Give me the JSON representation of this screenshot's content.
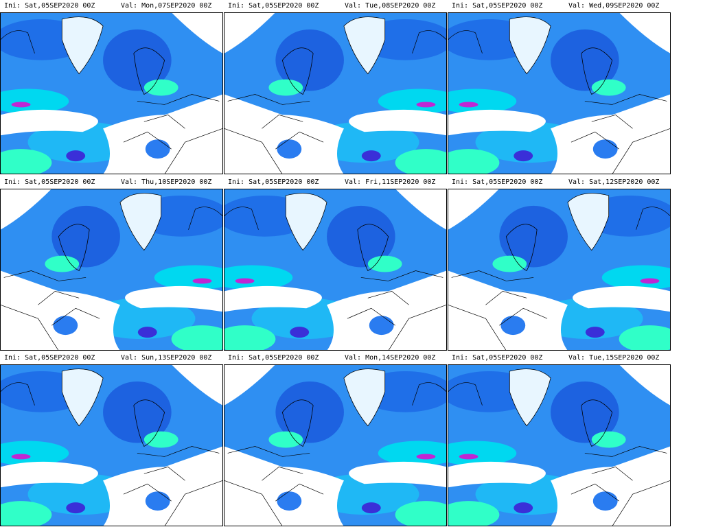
{
  "panels": [
    {
      "ini": "Ini: Sat,05SEP2020 00Z",
      "val": "Val: Mon,07SEP2020 00Z"
    },
    {
      "ini": "Ini: Sat,05SEP2020 00Z",
      "val": "Val: Tue,08SEP2020 00Z"
    },
    {
      "ini": "Ini: Sat,05SEP2020 00Z",
      "val": "Val: Wed,09SEP2020 00Z"
    },
    {
      "ini": "Ini: Sat,05SEP2020 00Z",
      "val": "Val: Thu,10SEP2020 00Z"
    },
    {
      "ini": "Ini: Sat,05SEP2020 00Z",
      "val": "Val: Fri,11SEP2020 00Z"
    },
    {
      "ini": "Ini: Sat,05SEP2020 00Z",
      "val": "Val: Sat,12SEP2020 00Z"
    },
    {
      "ini": "Ini: Sat,05SEP2020 00Z",
      "val": "Val: Sun,13SEP2020 00Z"
    },
    {
      "ini": "Ini: Sat,05SEP2020 00Z",
      "val": "Val: Mon,14SEP2020 00Z"
    },
    {
      "ini": "Ini: Sat,05SEP2020 00Z",
      "val": "Val: Tue,15SEP2020 00Z"
    }
  ]
}
